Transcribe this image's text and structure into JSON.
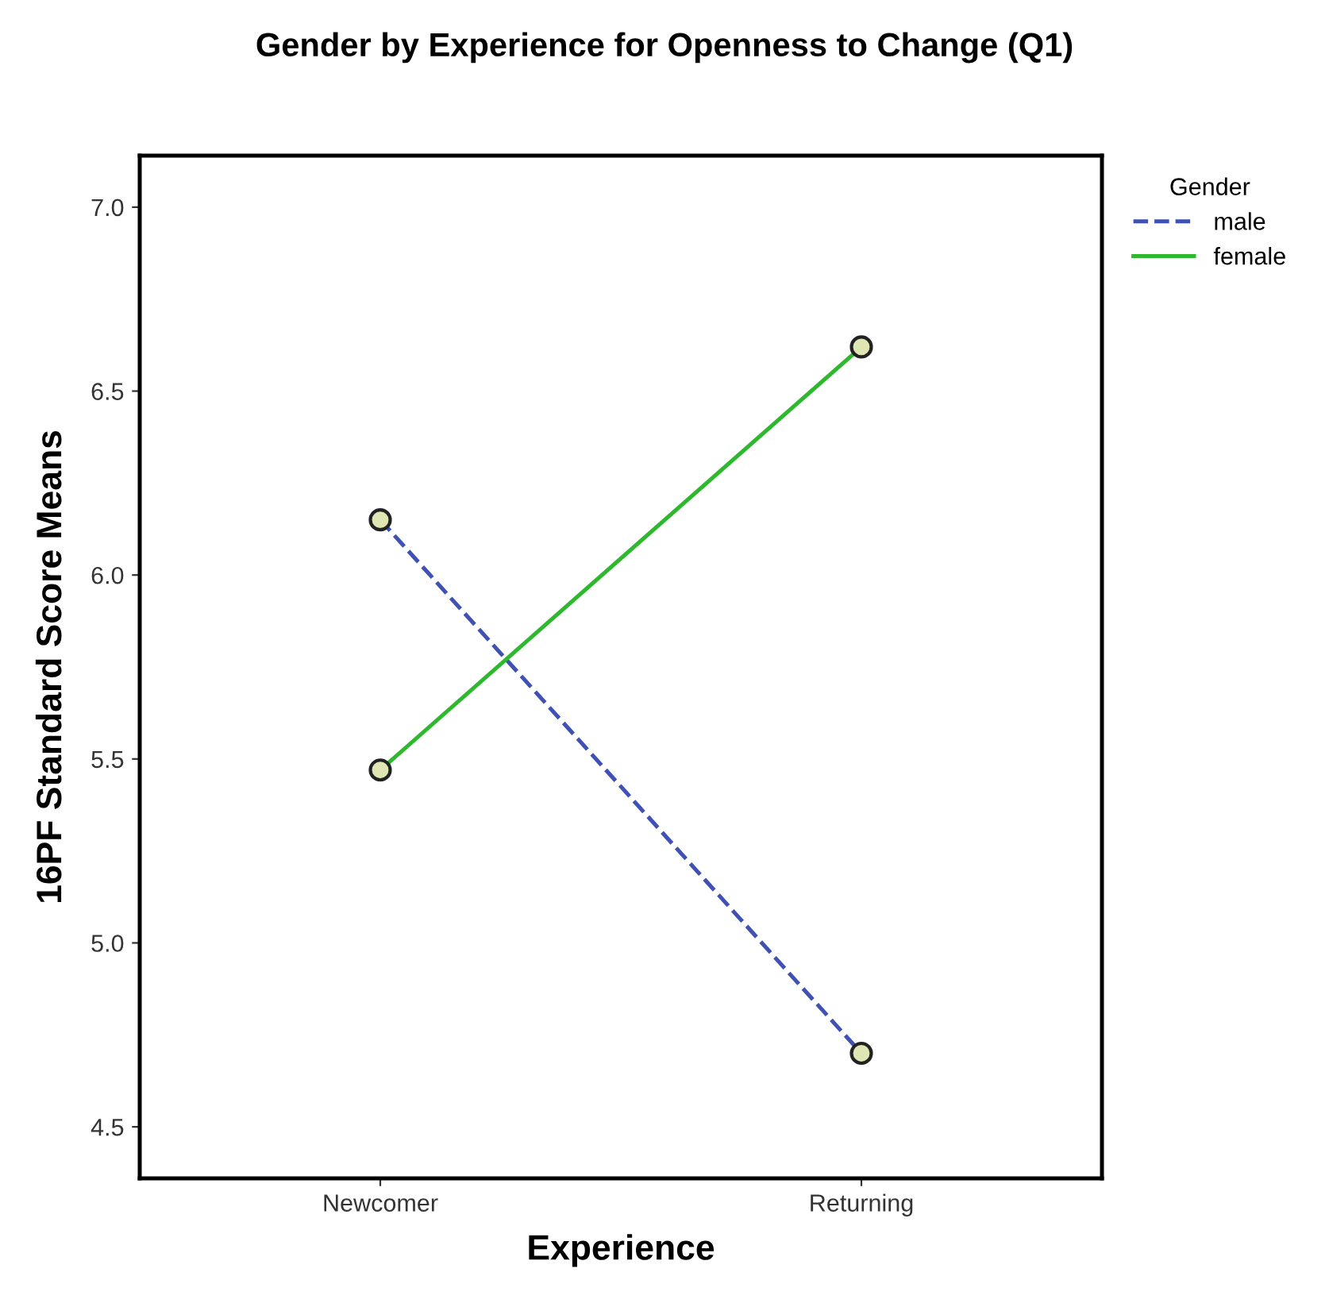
{
  "chart_data": {
    "type": "line",
    "title": "Gender by Experience for Openness to Change (Q1)",
    "xlabel": "Experience",
    "ylabel": "16PF Standard Score Means",
    "legend_title": "Gender",
    "categories": [
      "Newcomer",
      "Returning"
    ],
    "series": [
      {
        "name": "male",
        "color": "#3f51b5",
        "values": [
          6.15,
          4.7
        ],
        "line_style": "dashed"
      },
      {
        "name": "female",
        "color": "#2db82d",
        "values": [
          5.47,
          6.62
        ],
        "line_style": "solid"
      }
    ],
    "ylim": [
      4.36,
      7.14
    ],
    "yticks": [
      {
        "value": 4.5,
        "label": "4.5"
      },
      {
        "value": 5.0,
        "label": "5.0"
      },
      {
        "value": 5.5,
        "label": "5.5"
      },
      {
        "value": 6.0,
        "label": "6.0"
      },
      {
        "value": 6.5,
        "label": "6.5"
      },
      {
        "value": 7.0,
        "label": "7.0"
      }
    ],
    "marker": "circle",
    "grid": false,
    "legend": "top right"
  }
}
